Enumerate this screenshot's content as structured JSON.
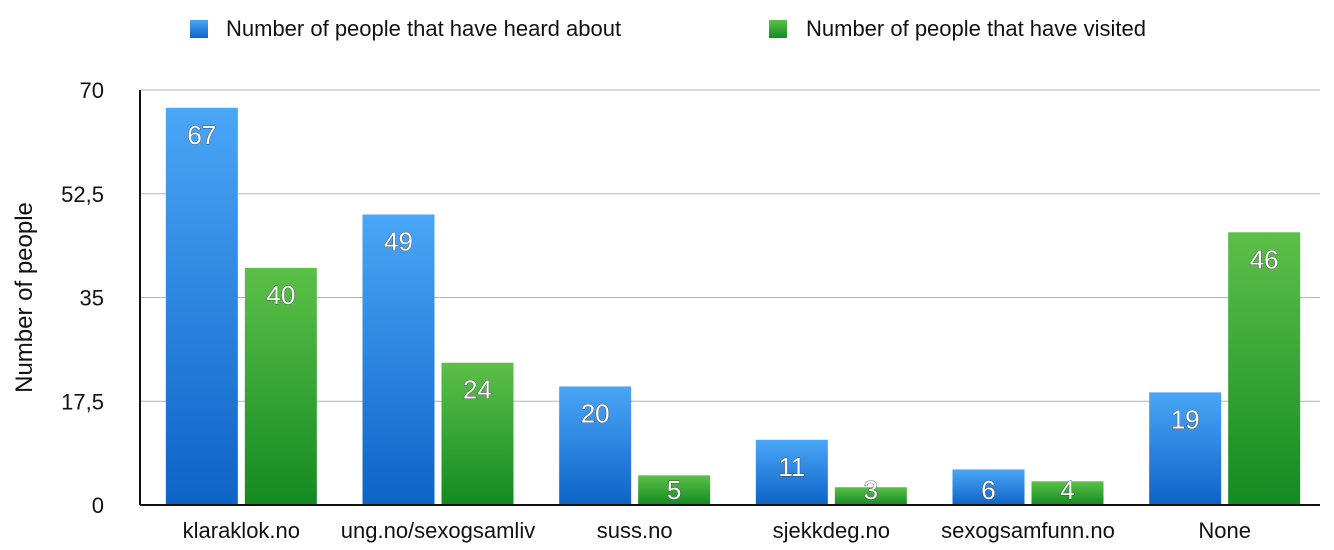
{
  "chart_data": {
    "type": "bar",
    "ylabel": "Number of people",
    "ylim": [
      0,
      70
    ],
    "yticks": [
      0,
      17.5,
      35,
      52.5,
      70
    ],
    "ytick_labels": [
      "0",
      "17,5",
      "35",
      "52,5",
      "70"
    ],
    "categories": [
      "klaraklok.no",
      "ung.no/sexogsamliv",
      "suss.no",
      "sjekkdeg.no",
      "sexogsamfunn.no",
      "None"
    ],
    "series": [
      {
        "name": "Number of people that have heard about",
        "values": [
          67,
          49,
          20,
          11,
          6,
          19
        ],
        "color": "#2f86e0"
      },
      {
        "name": "Number of people that have visited",
        "values": [
          40,
          24,
          5,
          3,
          4,
          46
        ],
        "color": "#2e9a2b"
      }
    ],
    "grid": true,
    "legend_position": "top"
  }
}
